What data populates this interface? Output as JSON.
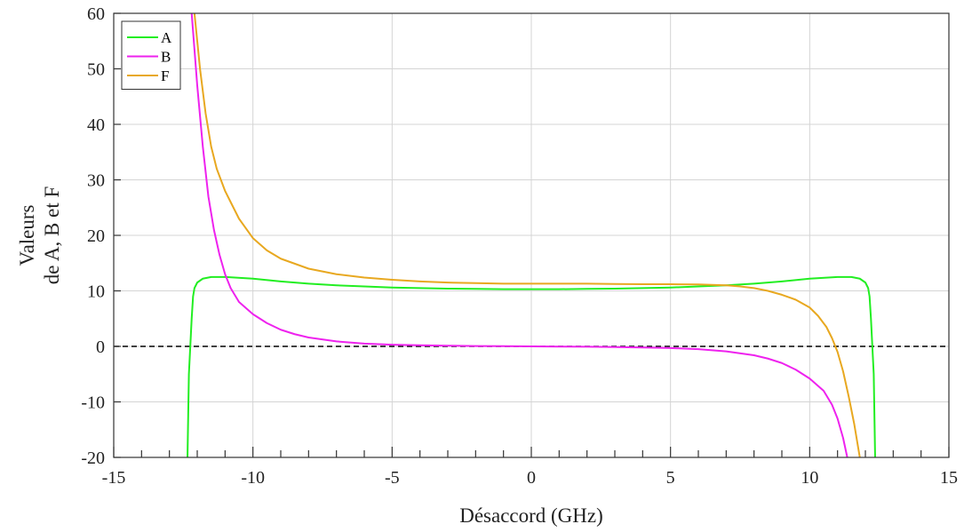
{
  "chart_data": {
    "type": "line",
    "title": "",
    "xlabel": "Désaccord (GHz)",
    "ylabel": [
      "Valeurs",
      "de A, B et F"
    ],
    "xlim": [
      -15,
      15
    ],
    "ylim": [
      -20,
      60
    ],
    "xticks": [
      -15,
      -10,
      -5,
      0,
      5,
      10,
      15
    ],
    "xtick_labels": [
      "-15",
      "-10",
      "-5",
      "0",
      "5",
      "10",
      "15"
    ],
    "yticks": [
      -20,
      -10,
      0,
      10,
      20,
      30,
      40,
      50,
      60
    ],
    "ytick_labels": [
      "-20",
      "-10",
      "0",
      "10",
      "20",
      "30",
      "40",
      "50",
      "60"
    ],
    "grid": true,
    "legend_position": "top-left",
    "reference_line": {
      "y": 0,
      "style": "dashed",
      "color": "#000000"
    },
    "series": [
      {
        "name": "A",
        "color": "#22ee22",
        "points": [
          [
            -12.35,
            -20
          ],
          [
            -12.3,
            -5
          ],
          [
            -12.25,
            0
          ],
          [
            -12.2,
            5
          ],
          [
            -12.15,
            9
          ],
          [
            -12.1,
            10.5
          ],
          [
            -12.0,
            11.5
          ],
          [
            -11.8,
            12.2
          ],
          [
            -11.5,
            12.5
          ],
          [
            -11.0,
            12.5
          ],
          [
            -10.0,
            12.2
          ],
          [
            -9.0,
            11.7
          ],
          [
            -8.0,
            11.3
          ],
          [
            -7.0,
            11.0
          ],
          [
            -6.0,
            10.8
          ],
          [
            -5.0,
            10.6
          ],
          [
            -4.0,
            10.5
          ],
          [
            -3.0,
            10.4
          ],
          [
            -2.0,
            10.35
          ],
          [
            -1.0,
            10.3
          ],
          [
            0.0,
            10.3
          ],
          [
            1.0,
            10.3
          ],
          [
            2.0,
            10.35
          ],
          [
            3.0,
            10.4
          ],
          [
            4.0,
            10.5
          ],
          [
            5.0,
            10.6
          ],
          [
            6.0,
            10.8
          ],
          [
            7.0,
            11.0
          ],
          [
            8.0,
            11.3
          ],
          [
            9.0,
            11.7
          ],
          [
            10.0,
            12.2
          ],
          [
            11.0,
            12.5
          ],
          [
            11.5,
            12.5
          ],
          [
            11.8,
            12.2
          ],
          [
            12.0,
            11.5
          ],
          [
            12.1,
            10.5
          ],
          [
            12.15,
            9
          ],
          [
            12.2,
            5
          ],
          [
            12.25,
            0
          ],
          [
            12.3,
            -5
          ],
          [
            12.35,
            -20
          ]
        ]
      },
      {
        "name": "B",
        "color": "#ee22ee",
        "points": [
          [
            -12.2,
            60
          ],
          [
            -12.0,
            47
          ],
          [
            -11.8,
            36
          ],
          [
            -11.6,
            27
          ],
          [
            -11.4,
            21
          ],
          [
            -11.2,
            16.5
          ],
          [
            -11.0,
            13
          ],
          [
            -10.8,
            10.5
          ],
          [
            -10.5,
            8
          ],
          [
            -10.0,
            5.8
          ],
          [
            -9.5,
            4.2
          ],
          [
            -9.0,
            3.0
          ],
          [
            -8.5,
            2.2
          ],
          [
            -8.0,
            1.6
          ],
          [
            -7.0,
            0.9
          ],
          [
            -6.0,
            0.5
          ],
          [
            -5.0,
            0.3
          ],
          [
            -4.0,
            0.2
          ],
          [
            -3.0,
            0.12
          ],
          [
            -2.0,
            0.06
          ],
          [
            -1.0,
            0.03
          ],
          [
            0.0,
            0.0
          ],
          [
            1.0,
            -0.03
          ],
          [
            2.0,
            -0.06
          ],
          [
            3.0,
            -0.12
          ],
          [
            4.0,
            -0.2
          ],
          [
            5.0,
            -0.3
          ],
          [
            6.0,
            -0.5
          ],
          [
            7.0,
            -0.9
          ],
          [
            8.0,
            -1.6
          ],
          [
            8.5,
            -2.2
          ],
          [
            9.0,
            -3.0
          ],
          [
            9.5,
            -4.2
          ],
          [
            10.0,
            -5.8
          ],
          [
            10.5,
            -8
          ],
          [
            10.8,
            -10.5
          ],
          [
            11.0,
            -13
          ],
          [
            11.2,
            -16.5
          ],
          [
            11.35,
            -20
          ]
        ]
      },
      {
        "name": "F",
        "color": "#e8a820",
        "points": [
          [
            -12.1,
            60
          ],
          [
            -11.9,
            50
          ],
          [
            -11.7,
            42
          ],
          [
            -11.5,
            36
          ],
          [
            -11.3,
            32
          ],
          [
            -11.0,
            28
          ],
          [
            -10.5,
            23
          ],
          [
            -10.0,
            19.5
          ],
          [
            -9.5,
            17.3
          ],
          [
            -9.0,
            15.8
          ],
          [
            -8.0,
            14.0
          ],
          [
            -7.0,
            13.0
          ],
          [
            -6.0,
            12.4
          ],
          [
            -5.0,
            12.0
          ],
          [
            -4.0,
            11.7
          ],
          [
            -3.0,
            11.5
          ],
          [
            -2.0,
            11.4
          ],
          [
            -1.0,
            11.3
          ],
          [
            0.0,
            11.3
          ],
          [
            1.0,
            11.3
          ],
          [
            2.0,
            11.3
          ],
          [
            3.0,
            11.25
          ],
          [
            4.0,
            11.2
          ],
          [
            5.0,
            11.2
          ],
          [
            6.0,
            11.15
          ],
          [
            7.0,
            11.0
          ],
          [
            7.5,
            10.8
          ],
          [
            8.0,
            10.5
          ],
          [
            8.5,
            10.0
          ],
          [
            9.0,
            9.3
          ],
          [
            9.5,
            8.4
          ],
          [
            10.0,
            7.0
          ],
          [
            10.3,
            5.5
          ],
          [
            10.6,
            3.5
          ],
          [
            10.8,
            1.5
          ],
          [
            11.0,
            -1.0
          ],
          [
            11.2,
            -4.5
          ],
          [
            11.4,
            -9.0
          ],
          [
            11.6,
            -14
          ],
          [
            11.8,
            -20
          ]
        ]
      }
    ]
  }
}
